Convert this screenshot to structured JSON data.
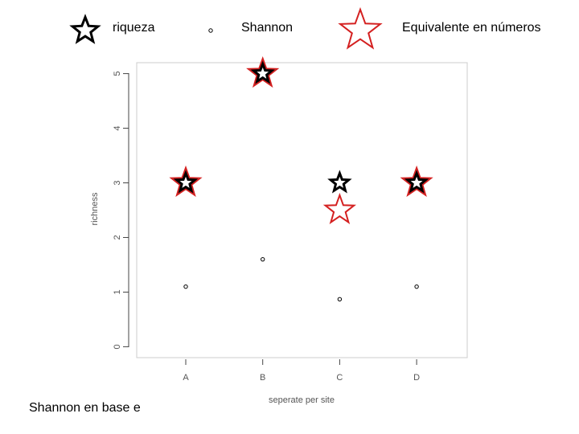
{
  "chart_data": {
    "type": "scatter",
    "y_label": "richness",
    "x_label": "seperate per site",
    "caption": "Shannon en base e",
    "categories": [
      "A",
      "B",
      "C",
      "D"
    ],
    "series": [
      {
        "name": "riqueza",
        "color": "#000000",
        "marker": "star",
        "values": [
          3,
          5,
          3,
          3
        ]
      },
      {
        "name": "Shannon",
        "color": "#000000",
        "marker": "circle",
        "values": [
          1.1,
          1.6,
          0.87,
          1.1
        ]
      },
      {
        "name": "Equivalente en números",
        "color": "#d42020",
        "marker": "star-large",
        "values": [
          3,
          5,
          2.5,
          3
        ]
      }
    ],
    "ylim": [
      -0.2,
      5.2
    ],
    "yticks": [
      0,
      1,
      2,
      3,
      4,
      5
    ]
  }
}
